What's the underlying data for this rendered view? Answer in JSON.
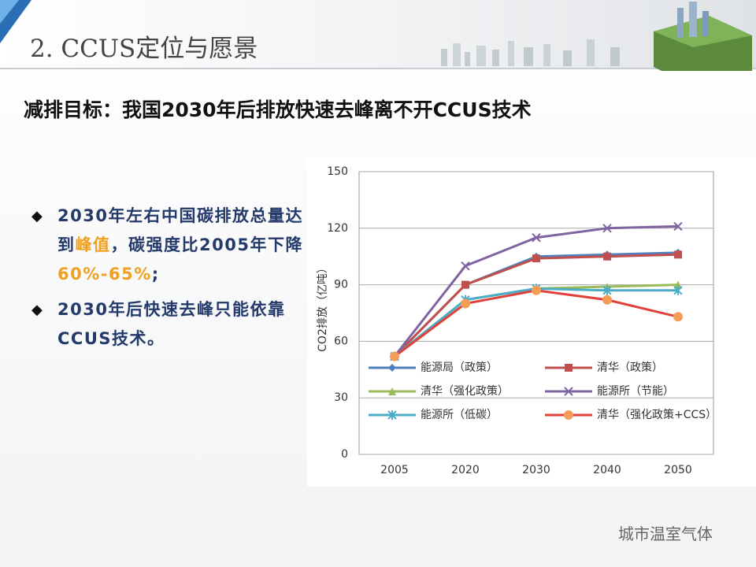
{
  "header": {
    "title": "2. CCUS定位与愿景"
  },
  "subtitle": "减排目标：我国2030年后排放快速去峰离不开CCUS技术",
  "bullets": [
    {
      "segments": [
        "2030年左右中国碳排放总量达到",
        "峰值",
        "，碳强度比2005年下降",
        "60%-65%",
        ";"
      ],
      "highlight": [
        1,
        3
      ]
    },
    {
      "segments": [
        "2030年后快速去峰只能依靠CCUS技术。"
      ],
      "highlight": []
    }
  ],
  "watermark": "城市温室气体",
  "chart_data": {
    "type": "line",
    "y_label": "CO2排放（亿吨）",
    "categories": [
      "2005",
      "2020",
      "2030",
      "2040",
      "2050"
    ],
    "ylim": [
      0,
      150
    ],
    "yticks": [
      0,
      30,
      60,
      90,
      120,
      150
    ],
    "grid": true,
    "series": [
      {
        "name": "能源局（政策）",
        "color": "#4f81bd",
        "marker": "diamond",
        "values": [
          52,
          90,
          105,
          106,
          107
        ]
      },
      {
        "name": "清华（政策）",
        "color": "#c0504d",
        "marker": "square",
        "values": [
          52,
          90,
          104,
          105,
          106
        ]
      },
      {
        "name": "清华（强化政策）",
        "color": "#9bbb59",
        "marker": "triangle",
        "values": [
          52,
          82,
          88,
          89,
          90
        ]
      },
      {
        "name": "能源所（节能）",
        "color": "#8064a2",
        "marker": "x",
        "values": [
          52,
          100,
          115,
          120,
          121
        ]
      },
      {
        "name": "能源所（低碳）",
        "color": "#4bacc6",
        "marker": "asterisk",
        "values": [
          52,
          82,
          88,
          87,
          87
        ]
      },
      {
        "name": "清华（强化政策+CCS）",
        "color": "#e0413a",
        "marker_color": "#f59d56",
        "marker": "circle",
        "values": [
          52,
          80,
          87,
          82,
          73
        ]
      }
    ]
  }
}
